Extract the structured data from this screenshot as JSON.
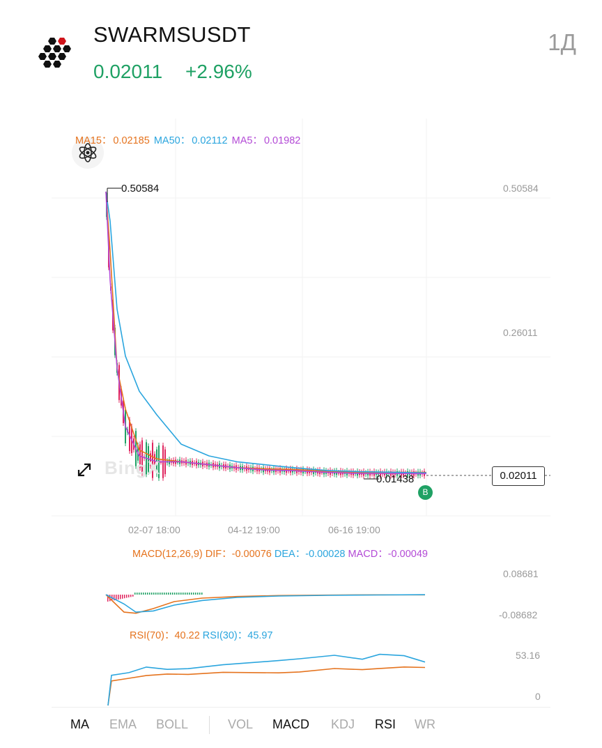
{
  "header": {
    "pair": "SWARMSUSDT",
    "price": "0.02011",
    "change": "+2.96%",
    "timeframe": "1Д"
  },
  "indicators": {
    "ma15_label": "MA15：",
    "ma15_value": "0.02185",
    "ma50_label": "MA50：",
    "ma50_value": "0.02112",
    "ma5_label": "MA5：",
    "ma5_value": "0.01982"
  },
  "main_chart": {
    "y_labels": [
      "0.50584",
      "0.26011"
    ],
    "x_labels": [
      "02-07 18:00",
      "04-12 19:00",
      "06-16 19:00"
    ],
    "high_label": "0.50584",
    "low_label": "0.01438",
    "current_price": "0.02011",
    "marker": "B",
    "watermark": "BingX"
  },
  "macd": {
    "label": "MACD(12,26,9)",
    "dif_label": "DIF：",
    "dif_value": "-0.00076",
    "dea_label": "DEA：",
    "dea_value": "-0.00028",
    "macd_label": "MACD：",
    "macd_value": "-0.00049",
    "y_top": "0.08681",
    "y_bottom": "-0.08682"
  },
  "rsi": {
    "rsi70_label": "RSI(70)：",
    "rsi70_value": "40.22",
    "rsi30_label": "RSI(30)：",
    "rsi30_value": "45.97",
    "y_top": "53.16",
    "y_bottom": "0"
  },
  "tabs": [
    {
      "label": "MA",
      "active": true
    },
    {
      "label": "EMA",
      "active": false
    },
    {
      "label": "BOLL",
      "active": false
    },
    {
      "label": "VOL",
      "active": false
    },
    {
      "label": "MACD",
      "active": true
    },
    {
      "label": "KDJ",
      "active": false
    },
    {
      "label": "RSI",
      "active": true
    },
    {
      "label": "WR",
      "active": false
    }
  ],
  "colors": {
    "up": "#1fa164",
    "down": "#e0245e",
    "ma15": "#e5731e",
    "ma50": "#2aa5de",
    "ma5": "#b34ad6"
  },
  "chart_data": {
    "type": "line",
    "x_ticks": [
      "02-07 18:00",
      "04-12 19:00",
      "06-16 19:00"
    ],
    "y_ticks": [
      0.50584,
      0.26011
    ],
    "ylim": [
      0.0,
      0.54
    ],
    "high": 0.50584,
    "low": 0.01438,
    "last": 0.02011,
    "series": [
      {
        "name": "MA15",
        "values": [
          0.5,
          0.4,
          0.2,
          0.13,
          0.06,
          0.045,
          0.04,
          0.035,
          0.03,
          0.028,
          0.027,
          0.024,
          0.022,
          0.022,
          0.02185
        ]
      },
      {
        "name": "MA50",
        "values": [
          0.5,
          0.45,
          0.3,
          0.22,
          0.16,
          0.12,
          0.07,
          0.05,
          0.04,
          0.035,
          0.03,
          0.025,
          0.023,
          0.022,
          0.02112
        ]
      },
      {
        "name": "MA5",
        "values": [
          0.5,
          0.35,
          0.2,
          0.1,
          0.05,
          0.04,
          0.04,
          0.035,
          0.03,
          0.026,
          0.025,
          0.022,
          0.02,
          0.02,
          0.01982
        ]
      }
    ],
    "macd": {
      "y_ticks": [
        0.08681,
        -0.08682
      ],
      "series": [
        {
          "name": "DIF",
          "values": [
            0.0,
            -0.075,
            -0.08,
            -0.06,
            -0.03,
            -0.015,
            -0.008,
            -0.004,
            -0.002,
            -0.001,
            -0.00076
          ]
        },
        {
          "name": "DEA",
          "values": [
            0.0,
            -0.04,
            -0.075,
            -0.07,
            -0.045,
            -0.025,
            -0.012,
            -0.006,
            -0.003,
            -0.0015,
            -0.00028
          ]
        }
      ]
    },
    "rsi": {
      "y_ticks": [
        53.16,
        0
      ],
      "series": [
        {
          "name": "RSI(70)",
          "values": [
            0,
            26,
            30,
            31,
            33,
            34,
            34,
            35,
            36,
            38,
            39,
            39,
            40,
            40.22
          ]
        },
        {
          "name": "RSI(30)",
          "values": [
            0,
            32,
            36,
            40,
            38,
            40,
            42,
            48,
            50,
            52,
            50,
            54,
            52,
            45.97
          ]
        }
      ]
    }
  }
}
